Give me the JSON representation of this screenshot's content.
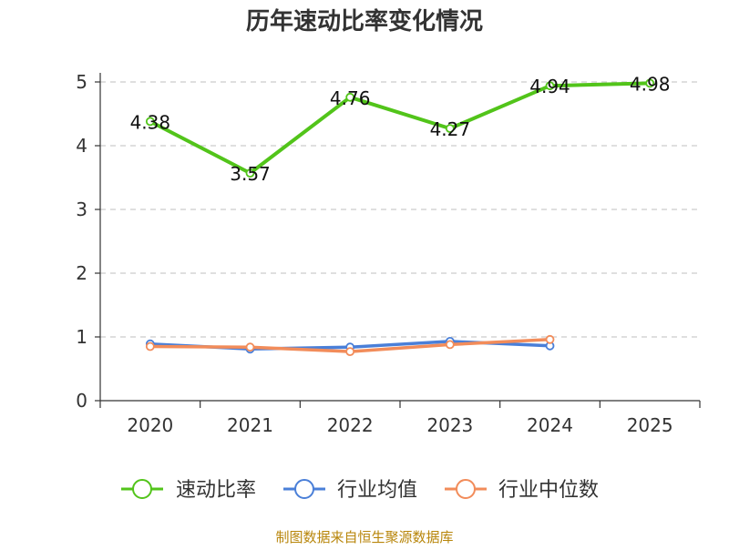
{
  "chart_data": {
    "type": "line",
    "title": "历年速动比率变化情况",
    "categories": [
      "2020",
      "2021",
      "2022",
      "2023",
      "2024",
      "2025"
    ],
    "ylim": [
      0,
      5
    ],
    "yticks": [
      "0",
      "1",
      "2",
      "3",
      "4",
      "5"
    ],
    "grid": true,
    "legend_position": "bottom",
    "series": [
      {
        "name": "速动比率",
        "color": "#52c41a",
        "values": [
          4.38,
          3.57,
          4.76,
          4.27,
          4.94,
          4.98
        ],
        "labels": [
          "4.38",
          "3.57",
          "4.76",
          "4.27",
          "4.94",
          "4.98"
        ]
      },
      {
        "name": "行业均值",
        "color": "#4a7fd8",
        "values": [
          0.89,
          0.81,
          0.84,
          0.93,
          0.86,
          null
        ]
      },
      {
        "name": "行业中位数",
        "color": "#f28c5a",
        "values": [
          0.85,
          0.84,
          0.77,
          0.88,
          0.96,
          null
        ]
      }
    ],
    "source": "制图数据来自恒生聚源数据库"
  }
}
